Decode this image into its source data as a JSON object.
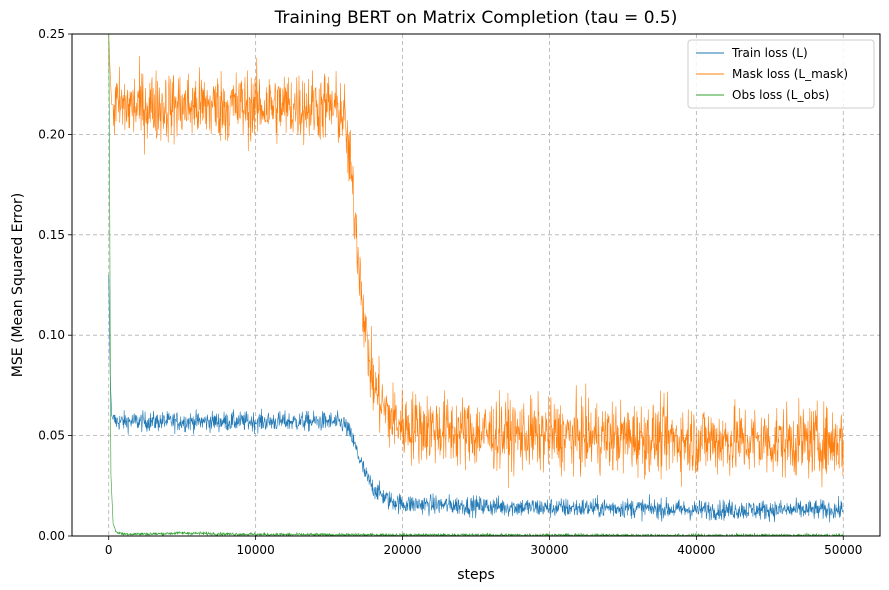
{
  "chart_data": {
    "type": "line",
    "title": "Training BERT on Matrix Completion (tau = 0.5)",
    "xlabel": "steps",
    "ylabel": "MSE (Mean Squared Error)",
    "xlim": [
      -2500,
      52500
    ],
    "ylim": [
      0,
      0.25
    ],
    "xticks": [
      0,
      10000,
      20000,
      30000,
      40000,
      50000
    ],
    "xtick_labels": [
      "0",
      "10000",
      "20000",
      "30000",
      "40000",
      "50000"
    ],
    "yticks": [
      0.0,
      0.05,
      0.1,
      0.15,
      0.2,
      0.25
    ],
    "ytick_labels": [
      "0.00",
      "0.05",
      "0.10",
      "0.15",
      "0.20",
      "0.25"
    ],
    "grid": true,
    "legend_position": "top-right",
    "series": [
      {
        "name": "Train loss (L)",
        "color": "#1f77b4",
        "noise": 0.0025,
        "x": [
          0,
          100,
          200,
          300,
          500,
          1000,
          5000,
          10000,
          15000,
          16000,
          16500,
          17000,
          17500,
          18000,
          19000,
          20000,
          25000,
          30000,
          35000,
          40000,
          45000,
          50000
        ],
        "y": [
          0.13,
          0.08,
          0.06,
          0.058,
          0.057,
          0.057,
          0.057,
          0.057,
          0.057,
          0.056,
          0.05,
          0.04,
          0.03,
          0.024,
          0.018,
          0.016,
          0.015,
          0.014,
          0.014,
          0.013,
          0.013,
          0.013
        ]
      },
      {
        "name": "Mask loss (L_mask)",
        "color": "#ff7f0e",
        "noise": 0.009,
        "x": [
          0,
          100,
          200,
          500,
          1000,
          5000,
          10000,
          15000,
          16000,
          16500,
          17000,
          17500,
          18000,
          19000,
          20000,
          25000,
          30000,
          35000,
          40000,
          45000,
          50000
        ],
        "y": [
          0.25,
          0.23,
          0.215,
          0.214,
          0.214,
          0.214,
          0.214,
          0.214,
          0.21,
          0.18,
          0.14,
          0.1,
          0.075,
          0.06,
          0.055,
          0.051,
          0.05,
          0.049,
          0.048,
          0.047,
          0.047
        ]
      },
      {
        "name": "Obs loss (L_obs)",
        "color": "#2ca02c",
        "noise": 0.0004,
        "x": [
          0,
          50,
          100,
          150,
          300,
          500,
          1000,
          3000,
          5000,
          8000,
          10000,
          15000,
          20000,
          30000,
          40000,
          50000
        ],
        "y": [
          0.25,
          0.2,
          0.1,
          0.03,
          0.006,
          0.002,
          0.001,
          0.001,
          0.0015,
          0.001,
          0.0008,
          0.0006,
          0.0005,
          0.0004,
          0.0003,
          0.0003
        ]
      }
    ]
  }
}
